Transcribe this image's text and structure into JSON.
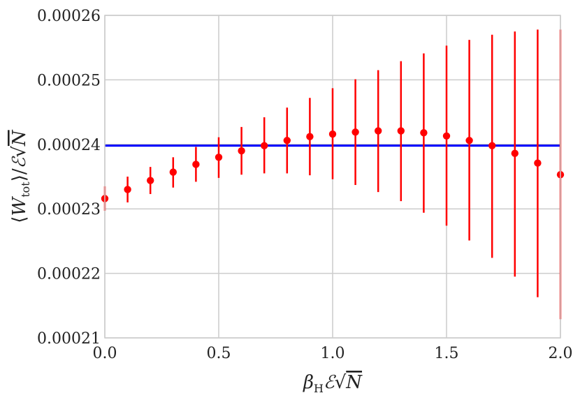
{
  "chart_data": {
    "type": "scatter",
    "title": "",
    "xlabel_parts": {
      "beta": "β",
      "sub": "H",
      "calE": "ℰ",
      "sqrt": "√",
      "N": "N"
    },
    "ylabel_parts": {
      "open": "⟨",
      "W": "W",
      "sub": "tot",
      "close": "⟩/",
      "calE": "ℰ",
      "sqrt": "√",
      "N": "N"
    },
    "xlim": [
      0.0,
      2.0
    ],
    "ylim": [
      0.00021,
      0.00026
    ],
    "grid": true,
    "x_ticks": [
      "0.0",
      "0.5",
      "1.0",
      "1.5",
      "2.0"
    ],
    "y_ticks": [
      "0.00021",
      "0.00022",
      "0.00023",
      "0.00024",
      "0.00025",
      "0.00026"
    ],
    "x_tick_values": [
      0.0,
      0.5,
      1.0,
      1.5,
      2.0
    ],
    "y_tick_values": [
      0.00021,
      0.00022,
      0.00023,
      0.00024,
      0.00025,
      0.00026
    ],
    "reference_line": {
      "y": 0.0002398,
      "color": "#0000ff"
    },
    "series": [
      {
        "color": "#ff0000",
        "x": [
          0.0,
          0.1,
          0.2,
          0.3,
          0.4,
          0.5,
          0.6,
          0.7,
          0.8,
          0.9,
          1.0,
          1.1,
          1.2,
          1.3,
          1.4,
          1.5,
          1.6,
          1.7,
          1.8,
          1.9,
          2.0
        ],
        "y": [
          0.0002316,
          0.000233,
          0.0002344,
          0.0002357,
          0.0002369,
          0.000238,
          0.000239,
          0.0002398,
          0.0002406,
          0.0002412,
          0.0002416,
          0.0002419,
          0.0002421,
          0.0002421,
          0.0002418,
          0.0002413,
          0.0002406,
          0.0002398,
          0.0002386,
          0.0002371,
          0.0002353
        ],
        "y_upper": [
          0.0002335,
          0.000235,
          0.0002365,
          0.000238,
          0.0002396,
          0.0002411,
          0.0002427,
          0.0002442,
          0.0002457,
          0.0002472,
          0.0002487,
          0.0002501,
          0.0002515,
          0.0002529,
          0.0002541,
          0.0002553,
          0.0002562,
          0.000257,
          0.0002575,
          0.0002578,
          0.0002578
        ],
        "y_lower": [
          0.0002297,
          0.000231,
          0.0002323,
          0.0002333,
          0.0002342,
          0.0002348,
          0.0002353,
          0.0002355,
          0.0002355,
          0.0002352,
          0.0002346,
          0.0002337,
          0.0002326,
          0.0002312,
          0.0002294,
          0.0002274,
          0.0002251,
          0.0002224,
          0.0002195,
          0.0002163,
          0.0002129
        ]
      }
    ]
  }
}
